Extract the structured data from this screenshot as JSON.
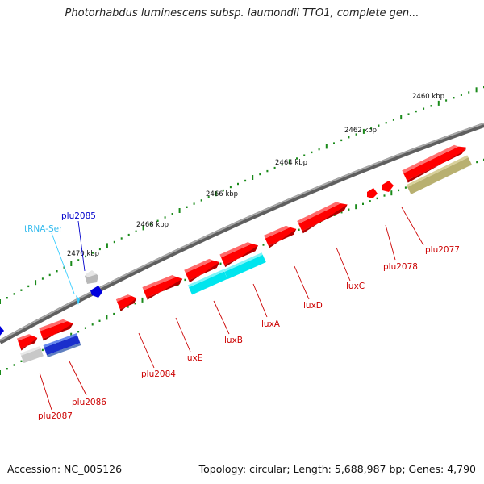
{
  "title": "Photorhabdus luminescens subsp. laumondii TTO1, complete gen...",
  "footer": {
    "accession": "Accession: NC_005126",
    "summary": "Topology: circular; Length: 5,688,987 bp; Genes: 4,790"
  },
  "scale_labels": [
    "2460 kbp",
    "2462 kbp",
    "2464 kbp",
    "2466 kbp",
    "2468 kbp",
    "2470 kbp"
  ],
  "gene_labels": {
    "plu2077": "plu2077",
    "plu2078": "plu2078",
    "luxC": "luxC",
    "luxD": "luxD",
    "luxA": "luxA",
    "luxB": "luxB",
    "luxE": "luxE",
    "plu2084": "plu2084",
    "plu2085": "plu2085",
    "plu2086": "plu2086",
    "plu2087": "plu2087",
    "tRNA": "tRNA-Ser"
  },
  "colors": {
    "cds": "#ff0000",
    "label_red": "#cc0000",
    "trna": "#33ccff",
    "plu2085_blue": "#0000dd",
    "cyan_feature": "#00e5ee",
    "olive_feature": "#b8b070",
    "grey_feature": "#c8c8c8",
    "tick_green": "#1a8a1a",
    "backbone": "#808080"
  }
}
